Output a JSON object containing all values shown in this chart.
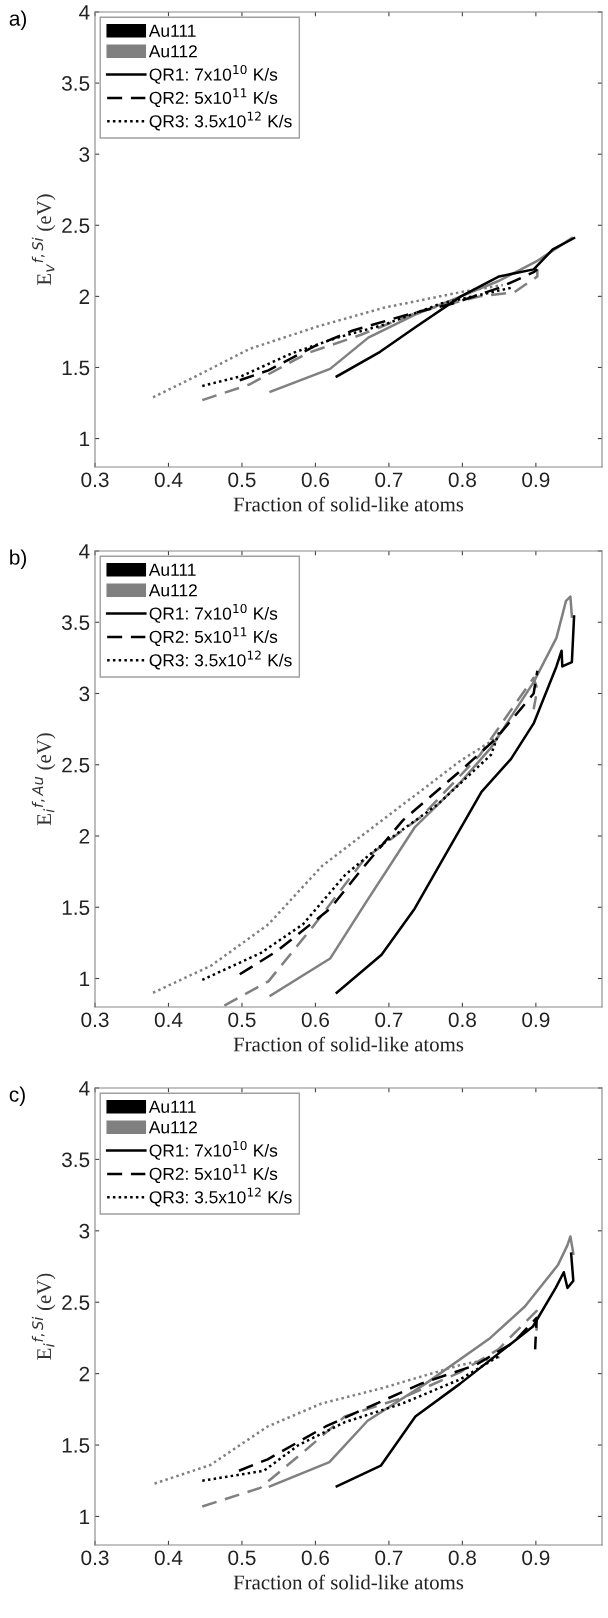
{
  "chart_data": [
    {
      "type": "line",
      "title": "a)",
      "xlabel": "Fraction of solid-like atoms",
      "ylabel": "E$_{v}$$^{f,Si}$ (eV)",
      "xlim": [
        0.3,
        0.99
      ],
      "ylim": [
        0.8,
        4
      ],
      "xticks": [
        0.3,
        0.4,
        0.5,
        0.6,
        0.7,
        0.8,
        0.9
      ],
      "yticks": [
        1,
        1.5,
        2,
        2.5,
        3,
        3.5,
        4
      ],
      "grid": false,
      "legend": "top left",
      "series": [
        {
          "name": "Au111",
          "type": "area",
          "color": "#000000"
        },
        {
          "name": "Au112",
          "type": "area",
          "color": "#808080"
        },
        {
          "name": "QR1: 7x10$^{10}$ K/s",
          "color": "#000000",
          "line_style": "solid"
        },
        {
          "name": "QR2: 5x10$^{11}$ K/s",
          "color": "#000000",
          "line_style": "dashed"
        },
        {
          "name": "QR3: 3.5x10$^{12}$ K/s",
          "color": "#000000",
          "line_style": "dotted"
        },
        {
          "color": "#808080",
          "line_style": "dotted",
          "x": [
            0.379,
            0.442,
            0.51,
            0.604,
            0.693,
            0.798,
            0.855
          ],
          "values": [
            1.29,
            1.45,
            1.63,
            1.79,
            1.92,
            2.03,
            2.08
          ]
        },
        {
          "color": "#808080",
          "line_style": "dashed",
          "x": [
            0.446,
            0.51,
            0.589,
            0.662,
            0.745,
            0.824,
            0.871,
            0.902,
            0.902
          ],
          "values": [
            1.27,
            1.38,
            1.6,
            1.73,
            1.9,
            2.0,
            2.03,
            2.14,
            2.19
          ]
        },
        {
          "color": "#808080",
          "line_style": "solid",
          "x": [
            0.539,
            0.62,
            0.672,
            0.735,
            0.798,
            0.85,
            0.902,
            0.949
          ],
          "values": [
            1.33,
            1.49,
            1.71,
            1.87,
            2.0,
            2.11,
            2.25,
            2.41
          ]
        },
        {
          "color": "#000000",
          "line_style": "dotted",
          "x": [
            0.446,
            0.5,
            0.568,
            0.63,
            0.693,
            0.771,
            0.866
          ],
          "values": [
            1.37,
            1.44,
            1.6,
            1.71,
            1.8,
            1.95,
            2.06
          ]
        },
        {
          "color": "#000000",
          "line_style": "dashed",
          "x": [
            0.497,
            0.536,
            0.599,
            0.651,
            0.724,
            0.787,
            0.85,
            0.897,
            0.902
          ],
          "values": [
            1.41,
            1.48,
            1.65,
            1.76,
            1.87,
            1.95,
            2.06,
            2.17,
            2.19
          ]
        },
        {
          "color": "#000000",
          "line_style": "solid",
          "x": [
            0.629,
            0.688,
            0.738,
            0.798,
            0.85,
            0.897,
            0.923,
            0.952
          ],
          "values": [
            1.437,
            1.61,
            1.79,
            2.0,
            2.14,
            2.19,
            2.33,
            2.41
          ]
        }
      ]
    },
    {
      "type": "line",
      "title": "b)",
      "xlabel": "Fraction of solid-like atoms",
      "ylabel": "E$_{i}$$^{f,Au}$ (eV)",
      "xlim": [
        0.3,
        0.99
      ],
      "ylim": [
        0.8,
        4
      ],
      "xticks": [
        0.3,
        0.4,
        0.5,
        0.6,
        0.7,
        0.8,
        0.9
      ],
      "yticks": [
        1,
        1.5,
        2,
        2.5,
        3,
        3.5,
        4
      ],
      "grid": false,
      "legend": "top left",
      "series": [
        {
          "name": "Au111",
          "type": "area",
          "color": "#000000"
        },
        {
          "name": "Au112",
          "type": "area",
          "color": "#808080"
        },
        {
          "name": "QR1: 7x10$^{10}$ K/s",
          "color": "#000000",
          "line_style": "solid"
        },
        {
          "name": "QR2: 5x10$^{11}$ K/s",
          "color": "#000000",
          "line_style": "dashed"
        },
        {
          "name": "QR3: 3.5x10$^{12}$ K/s",
          "color": "#000000",
          "line_style": "dotted"
        },
        {
          "color": "#808080",
          "line_style": "dotted",
          "x": [
            0.379,
            0.458,
            0.536,
            0.609,
            0.683,
            0.798,
            0.85
          ],
          "values": [
            0.9,
            1.09,
            1.38,
            1.79,
            2.08,
            2.53,
            2.7
          ]
        },
        {
          "color": "#808080",
          "line_style": "dashed",
          "x": [
            0.476,
            0.536,
            0.599,
            0.667,
            0.745,
            0.824,
            0.871,
            0.897,
            0.902,
            0.897
          ],
          "values": [
            0.81,
            0.98,
            1.38,
            1.84,
            2.14,
            2.57,
            2.92,
            3.11,
            3.03,
            2.89
          ]
        },
        {
          "color": "#808080",
          "line_style": "solid",
          "x": [
            0.539,
            0.62,
            0.667,
            0.735,
            0.798,
            0.839,
            0.897,
            0.928,
            0.941,
            0.947,
            0.949
          ],
          "values": [
            0.88,
            1.14,
            1.52,
            2.06,
            2.38,
            2.62,
            3.08,
            3.39,
            3.65,
            3.68,
            3.54
          ]
        },
        {
          "color": "#000000",
          "line_style": "dotted",
          "x": [
            0.446,
            0.526,
            0.583,
            0.641,
            0.693,
            0.766,
            0.839,
            0.85
          ],
          "values": [
            0.99,
            1.18,
            1.38,
            1.73,
            1.95,
            2.22,
            2.57,
            2.73
          ]
        },
        {
          "color": "#000000",
          "line_style": "dashed",
          "x": [
            0.497,
            0.547,
            0.62,
            0.662,
            0.719,
            0.798,
            0.845,
            0.897,
            0.902
          ],
          "values": [
            1.03,
            1.19,
            1.49,
            1.76,
            2.11,
            2.46,
            2.68,
            3.0,
            3.16
          ]
        },
        {
          "color": "#000000",
          "line_style": "solid",
          "x": [
            0.629,
            0.69,
            0.735,
            0.777,
            0.826,
            0.866,
            0.897,
            0.928,
            0.935,
            0.936,
            0.949,
            0.952
          ],
          "values": [
            0.9,
            1.167,
            1.49,
            1.87,
            2.31,
            2.54,
            2.79,
            3.19,
            3.3,
            3.19,
            3.22,
            3.54
          ]
        }
      ]
    },
    {
      "type": "line",
      "title": "c)",
      "xlabel": "Fraction of solid-like atoms",
      "ylabel": "E$_{i}$$^{f,Si}$ (eV)",
      "xlim": [
        0.3,
        0.99
      ],
      "ylim": [
        0.8,
        4
      ],
      "xticks": [
        0.3,
        0.4,
        0.5,
        0.6,
        0.7,
        0.8,
        0.9
      ],
      "yticks": [
        1,
        1.5,
        2,
        2.5,
        3,
        3.5,
        4
      ],
      "grid": false,
      "legend": "top left",
      "series": [
        {
          "name": "Au111",
          "type": "area",
          "color": "#000000"
        },
        {
          "name": "Au112",
          "type": "area",
          "color": "#808080"
        },
        {
          "name": "QR1: 7x10$^{10}$ K/s",
          "color": "#000000",
          "line_style": "solid"
        },
        {
          "name": "QR2: 5x10$^{11}$ K/s",
          "color": "#000000",
          "line_style": "dashed"
        },
        {
          "name": "QR3: 3.5x10$^{12}$ K/s",
          "color": "#000000",
          "line_style": "dotted"
        },
        {
          "color": "#808080",
          "line_style": "dotted",
          "x": [
            0.381,
            0.457,
            0.535,
            0.608,
            0.692,
            0.797,
            0.854
          ],
          "values": [
            1.23,
            1.36,
            1.63,
            1.79,
            1.9,
            2.06,
            2.12
          ]
        },
        {
          "color": "#808080",
          "line_style": "dashed",
          "x": [
            0.446,
            0.525,
            0.588,
            0.64,
            0.718,
            0.797,
            0.849,
            0.901,
            0.901
          ],
          "values": [
            1.07,
            1.2,
            1.47,
            1.7,
            1.83,
            2.01,
            2.17,
            2.44,
            2.3
          ]
        },
        {
          "color": "#808080",
          "line_style": "solid",
          "x": [
            0.538,
            0.619,
            0.671,
            0.75,
            0.838,
            0.885,
            0.93,
            0.943,
            0.947,
            0.951
          ],
          "values": [
            1.21,
            1.38,
            1.67,
            1.93,
            2.25,
            2.47,
            2.76,
            2.9,
            2.96,
            2.84
          ]
        },
        {
          "color": "#000000",
          "line_style": "dotted",
          "x": [
            0.446,
            0.53,
            0.577,
            0.64,
            0.718,
            0.797,
            0.849
          ],
          "values": [
            1.25,
            1.32,
            1.5,
            1.66,
            1.79,
            1.96,
            2.12
          ]
        },
        {
          "color": "#000000",
          "line_style": "dashed",
          "x": [
            0.496,
            0.535,
            0.614,
            0.661,
            0.744,
            0.818,
            0.87,
            0.901,
            0.899
          ],
          "values": [
            1.32,
            1.4,
            1.63,
            1.74,
            1.93,
            2.06,
            2.22,
            2.39,
            2.17
          ]
        },
        {
          "color": "#000000",
          "line_style": "solid",
          "x": [
            0.629,
            0.689,
            0.736,
            0.797,
            0.849,
            0.896,
            0.927,
            0.938,
            0.943,
            0.951,
            0.948
          ],
          "values": [
            1.21,
            1.355,
            1.7,
            1.93,
            2.14,
            2.33,
            2.6,
            2.71,
            2.6,
            2.65,
            2.84
          ]
        }
      ]
    }
  ]
}
